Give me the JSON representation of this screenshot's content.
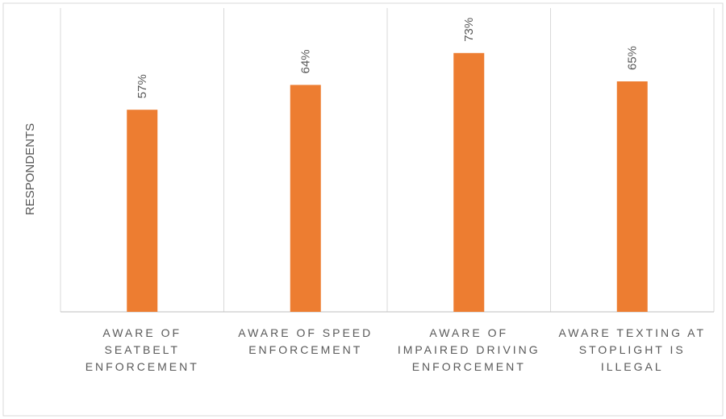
{
  "chart_data": {
    "type": "bar",
    "y_label": "RESPONDENTS",
    "categories": [
      "AWARE OF SEATBELT ENFORCEMENT",
      "AWARE OF SPEED ENFORCEMENT",
      "AWARE OF IMPAIRED DRIVING ENFORCEMENT",
      "AWARE TEXTING AT STOPLIGHT IS ILLEGAL"
    ],
    "values": [
      57,
      64,
      73,
      65
    ],
    "value_labels": [
      "57%",
      "64%",
      "73%",
      "65%"
    ],
    "color": "#ed7d31",
    "ylim": [
      0,
      80
    ]
  }
}
